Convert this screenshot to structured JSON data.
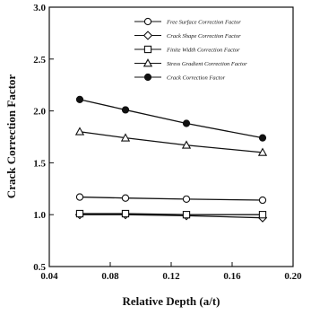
{
  "chart_data": {
    "type": "line",
    "title": "",
    "xlabel": "Relative Depth (a/t)",
    "ylabel": "Crack Correction Factor",
    "xlim": [
      0.04,
      0.2
    ],
    "ylim": [
      0.5,
      3.0
    ],
    "x_ticks": [
      "0.04",
      "0.08",
      "0.12",
      "0.16",
      "0.20"
    ],
    "y_ticks": [
      "0.5",
      "1.0",
      "1.5",
      "2.0",
      "2.5",
      "3.0"
    ],
    "x": [
      0.06,
      0.09,
      0.13,
      0.18
    ],
    "grid": false,
    "legend_position": "top-right",
    "series": [
      {
        "name": "Free Surface Correction Factor",
        "marker": "circle-open",
        "values": [
          1.17,
          1.16,
          1.15,
          1.14
        ]
      },
      {
        "name": "Crack Shape Correction Factor",
        "marker": "diamond-open",
        "values": [
          1.0,
          1.0,
          0.99,
          0.97
        ]
      },
      {
        "name": "Finite Width Correction Factor",
        "marker": "square-open",
        "values": [
          1.01,
          1.01,
          1.0,
          1.0
        ]
      },
      {
        "name": "Stress Gradient Correction Factor",
        "marker": "triangle-open",
        "values": [
          1.8,
          1.74,
          1.67,
          1.6
        ]
      },
      {
        "name": "Crack Correction Factor",
        "marker": "circle-filled",
        "values": [
          2.11,
          2.01,
          1.88,
          1.74
        ]
      }
    ]
  }
}
